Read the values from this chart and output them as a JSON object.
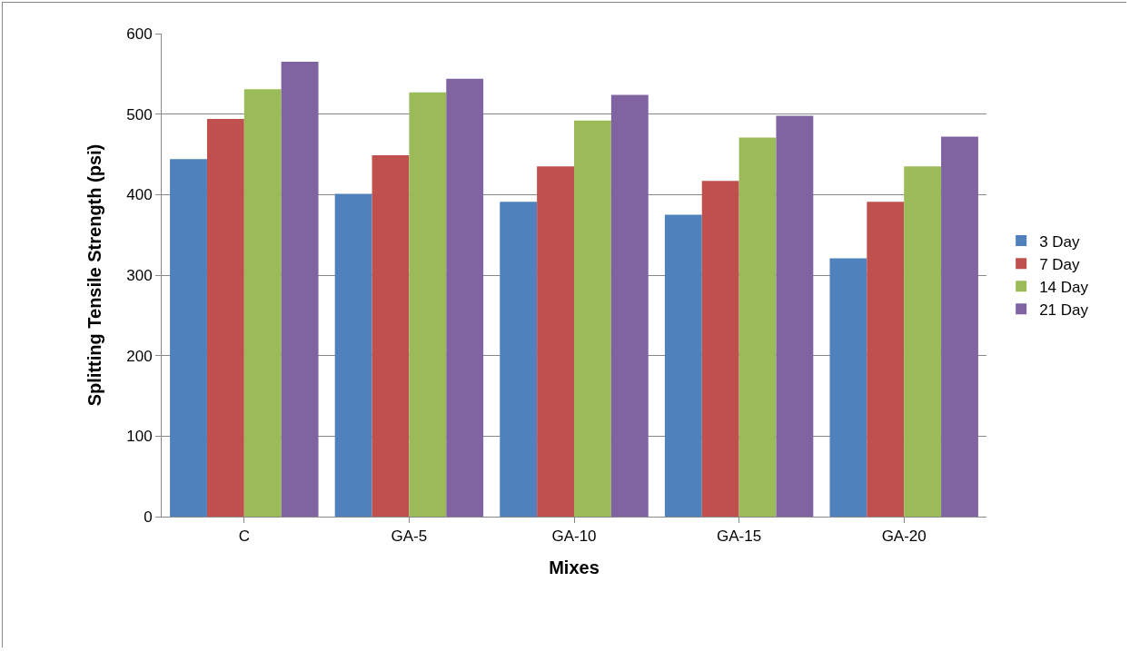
{
  "chart_data": {
    "type": "bar",
    "xlabel": "Mixes",
    "ylabel": "Splitting Tensile Strength (psi)",
    "categories": [
      "C",
      "GA-5",
      "GA-10",
      "GA-15",
      "GA-20"
    ],
    "series": [
      {
        "name": "3 Day",
        "color": "#4f81bd",
        "values": [
          444,
          401,
          391,
          375,
          321
        ]
      },
      {
        "name": "7 Day",
        "color": "#c0504d",
        "values": [
          494,
          449,
          435,
          417,
          391
        ]
      },
      {
        "name": "14 Day",
        "color": "#9bbb59",
        "values": [
          531,
          527,
          492,
          471,
          435
        ]
      },
      {
        "name": "21 Day",
        "color": "#8064a2",
        "values": [
          565,
          544,
          524,
          498,
          472
        ]
      }
    ],
    "ylim": [
      0,
      600
    ],
    "yticks": [
      0,
      100,
      200,
      300,
      400,
      500,
      600
    ],
    "grid": "y",
    "legend": "right"
  }
}
